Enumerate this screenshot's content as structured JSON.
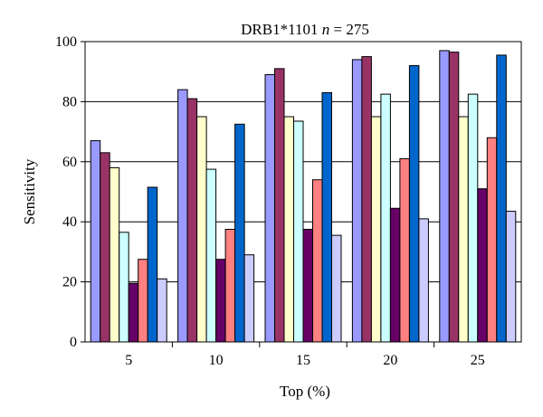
{
  "chart_data": {
    "type": "bar",
    "title_prefix": "DRB1*1101",
    "title_n": "n",
    "title_suffix": " = 275",
    "xlabel": "Top (%)",
    "ylabel": "Sensitivity",
    "categories": [
      "5",
      "10",
      "15",
      "20",
      "25"
    ],
    "ylim": [
      0,
      100
    ],
    "yticks": [
      "0",
      "20",
      "40",
      "60",
      "80",
      "100"
    ],
    "grid": "horizontal",
    "legend": "none",
    "series": [
      {
        "color": "#9999ff",
        "values": [
          67,
          84,
          89,
          94,
          97
        ]
      },
      {
        "color": "#993366",
        "values": [
          63,
          81,
          91,
          95,
          96.5
        ]
      },
      {
        "color": "#ffffcc",
        "values": [
          58,
          75,
          75,
          75,
          75
        ]
      },
      {
        "color": "#ccffff",
        "values": [
          36.5,
          57.5,
          73.5,
          82.5,
          82.5
        ]
      },
      {
        "color": "#660066",
        "values": [
          19.5,
          27.5,
          37.5,
          44.5,
          51
        ]
      },
      {
        "color": "#ff8080",
        "values": [
          27.5,
          37.5,
          54,
          61,
          68
        ]
      },
      {
        "color": "#0066cc",
        "values": [
          51.5,
          72.5,
          83,
          92,
          95.5
        ]
      },
      {
        "color": "#ccccff",
        "values": [
          21,
          29,
          35.5,
          41,
          43.5
        ]
      }
    ]
  }
}
